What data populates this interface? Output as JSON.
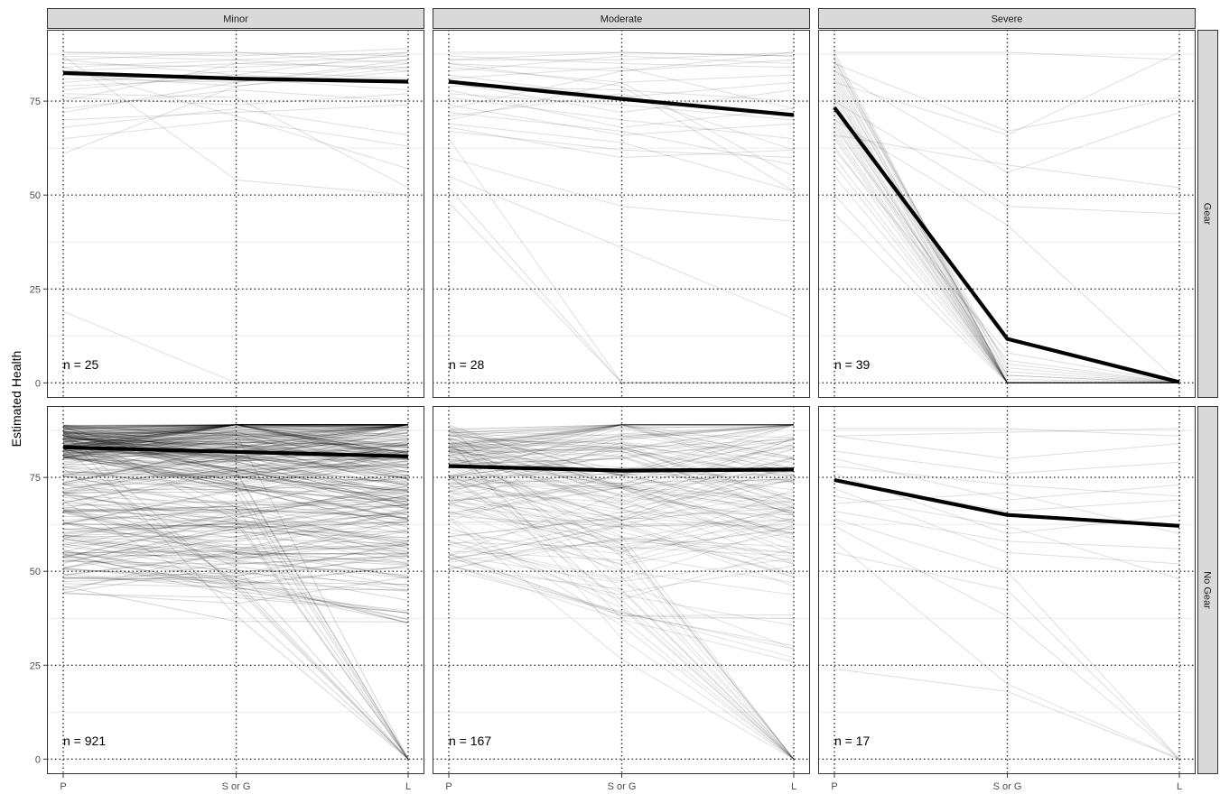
{
  "chart_data": {
    "type": "line",
    "ylabel": "Estimated Health",
    "x_categories": [
      "P",
      "S or G",
      "L"
    ],
    "y_ticks": [
      0,
      25,
      50,
      75
    ],
    "ylim": [
      -4,
      94
    ],
    "grid": true,
    "col_facets": [
      "Minor",
      "Moderate",
      "Severe"
    ],
    "row_facets": [
      "Gear",
      "No Gear"
    ],
    "colors": {
      "individual": "#000000",
      "mean": "#000000",
      "strip": "#d9d9d9",
      "major_grid": "#333333",
      "minor_grid": "#ebebeb"
    },
    "panels": [
      {
        "row": "Gear",
        "col": "Minor",
        "label": "n = 25",
        "mean": [
          82.5,
          81,
          80.2
        ],
        "individual": [
          [
            88,
            88,
            87
          ],
          [
            87,
            86,
            88
          ],
          [
            86,
            88,
            85
          ],
          [
            85,
            84,
            86
          ],
          [
            84,
            86,
            83
          ],
          [
            83,
            85,
            87
          ],
          [
            82,
            79,
            84
          ],
          [
            80,
            83,
            81
          ],
          [
            79,
            81,
            78
          ],
          [
            78,
            82,
            80
          ],
          [
            76,
            74,
            77
          ],
          [
            73,
            78,
            75
          ],
          [
            70,
            72,
            74
          ],
          [
            68,
            73,
            66
          ],
          [
            65,
            70,
            63
          ],
          [
            61,
            79,
            83
          ],
          [
            87,
            54,
            50
          ],
          [
            86,
            82,
            88
          ],
          [
            84,
            71,
            57
          ],
          [
            75,
            85,
            84
          ],
          [
            88,
            87,
            89
          ],
          [
            81,
            80,
            86
          ],
          [
            77,
            76,
            52
          ],
          [
            72,
            80,
            85
          ],
          [
            19,
            0,
            0
          ]
        ]
      },
      {
        "row": "Gear",
        "col": "Moderate",
        "label": "n = 28",
        "mean": [
          80.2,
          75.6,
          71.3
        ],
        "individual": [
          [
            88,
            88,
            87
          ],
          [
            87,
            85,
            84
          ],
          [
            86,
            86,
            88
          ],
          [
            85,
            83,
            86
          ],
          [
            84,
            80,
            82
          ],
          [
            83,
            87,
            85
          ],
          [
            82,
            76,
            80
          ],
          [
            80,
            72,
            78
          ],
          [
            79,
            78,
            75
          ],
          [
            78,
            68,
            73
          ],
          [
            77,
            74,
            70
          ],
          [
            76,
            70,
            65
          ],
          [
            74,
            66,
            69
          ],
          [
            72,
            67,
            58
          ],
          [
            70,
            80,
            55
          ],
          [
            69,
            64,
            51
          ],
          [
            68,
            60,
            62
          ],
          [
            67,
            62,
            60
          ],
          [
            65,
            0,
            0
          ],
          [
            60,
            47,
            43
          ],
          [
            55,
            36,
            17
          ],
          [
            52,
            0,
            0
          ],
          [
            48,
            0,
            0
          ],
          [
            85,
            79,
            51
          ],
          [
            86,
            88,
            87
          ],
          [
            81,
            84,
            73
          ],
          [
            73,
            83,
            88
          ],
          [
            71,
            77,
            62
          ]
        ]
      },
      {
        "row": "Gear",
        "col": "Severe",
        "label": "n = 39",
        "mean": [
          73.3,
          11.7,
          0.2
        ],
        "individual": [
          [
            88,
            0,
            0
          ],
          [
            87,
            0,
            0
          ],
          [
            86,
            0,
            0
          ],
          [
            86,
            2,
            0
          ],
          [
            85,
            0,
            0
          ],
          [
            84,
            4,
            0
          ],
          [
            83,
            0,
            0
          ],
          [
            82,
            1,
            0
          ],
          [
            81,
            0,
            0
          ],
          [
            80,
            3,
            0
          ],
          [
            79,
            0,
            0
          ],
          [
            78,
            0,
            0
          ],
          [
            77,
            0,
            0
          ],
          [
            76,
            5,
            0
          ],
          [
            75,
            0,
            0
          ],
          [
            74,
            0,
            0
          ],
          [
            73,
            0,
            0
          ],
          [
            72,
            2,
            0
          ],
          [
            71,
            0,
            0
          ],
          [
            70,
            0,
            0
          ],
          [
            69,
            0,
            0
          ],
          [
            68,
            6,
            0
          ],
          [
            67,
            0,
            0
          ],
          [
            66,
            0,
            0
          ],
          [
            65,
            0,
            0
          ],
          [
            63,
            0,
            0
          ],
          [
            62,
            8,
            0
          ],
          [
            60,
            0,
            0
          ],
          [
            58,
            0,
            0
          ],
          [
            55,
            0,
            0
          ],
          [
            50,
            0,
            0
          ],
          [
            45,
            0,
            0
          ],
          [
            88,
            88,
            86
          ],
          [
            85,
            67,
            76
          ],
          [
            83,
            56,
            72
          ],
          [
            80,
            66,
            88
          ],
          [
            75,
            47,
            45
          ],
          [
            70,
            42,
            0
          ],
          [
            66,
            58,
            52
          ]
        ]
      },
      {
        "row": "No Gear",
        "col": "Minor",
        "label": "n = 921",
        "mean": [
          83,
          81.8,
          80.6
        ],
        "dense": {
          "count": 300,
          "seed": 11,
          "model": "minor"
        },
        "individual": []
      },
      {
        "row": "No Gear",
        "col": "Moderate",
        "label": "n = 167",
        "mean": [
          78,
          76.8,
          77.1
        ],
        "dense": {
          "count": 167,
          "seed": 23,
          "model": "moderate"
        },
        "individual": []
      },
      {
        "row": "No Gear",
        "col": "Severe",
        "label": "n = 17",
        "mean": [
          74.3,
          65,
          62.1
        ],
        "individual": [
          [
            88,
            88,
            86
          ],
          [
            86,
            80,
            84
          ],
          [
            82,
            76,
            79
          ],
          [
            80,
            69,
            73
          ],
          [
            78,
            73,
            70
          ],
          [
            76,
            60,
            65
          ],
          [
            74,
            66,
            69
          ],
          [
            72,
            55,
            52
          ],
          [
            70,
            62,
            48
          ],
          [
            68,
            71,
            60
          ],
          [
            66,
            58,
            56
          ],
          [
            64,
            50,
            0
          ],
          [
            62,
            38,
            0
          ],
          [
            58,
            20,
            0
          ],
          [
            55,
            45,
            0
          ],
          [
            24,
            18,
            0
          ],
          [
            86,
            87,
            88
          ]
        ]
      }
    ]
  }
}
